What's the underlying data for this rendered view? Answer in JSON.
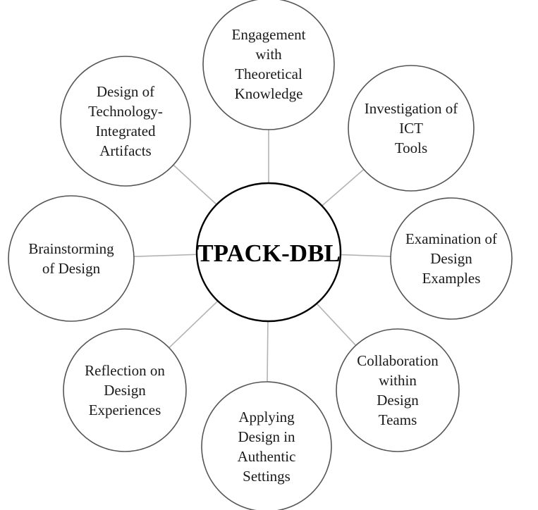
{
  "center": {
    "label": "TPACK-DBL"
  },
  "nodes": [
    {
      "id": "engagement",
      "lines": [
        "Engagement",
        "with",
        "Theoretical",
        "Knowledge"
      ]
    },
    {
      "id": "investigation",
      "lines": [
        "Investigation of",
        "ICT",
        "Tools"
      ]
    },
    {
      "id": "examination",
      "lines": [
        "Examination of",
        "Design",
        "Examples"
      ]
    },
    {
      "id": "collaboration",
      "lines": [
        "Collaboration",
        "within",
        "Design",
        "Teams"
      ]
    },
    {
      "id": "applying",
      "lines": [
        "Applying",
        "Design in",
        "Authentic",
        "Settings"
      ]
    },
    {
      "id": "reflection",
      "lines": [
        "Reflection on",
        "Design",
        "Experiences"
      ]
    },
    {
      "id": "brainstorming",
      "lines": [
        "Brainstorming",
        "of Design"
      ]
    },
    {
      "id": "design-artifacts",
      "lines": [
        "Design of",
        "Technology-",
        "Integrated",
        "Artifacts"
      ]
    }
  ],
  "colors": {
    "node_stroke": "#555555",
    "center_stroke": "#000000",
    "connector": "#b3b3b3",
    "text": "#1a1a1a"
  }
}
